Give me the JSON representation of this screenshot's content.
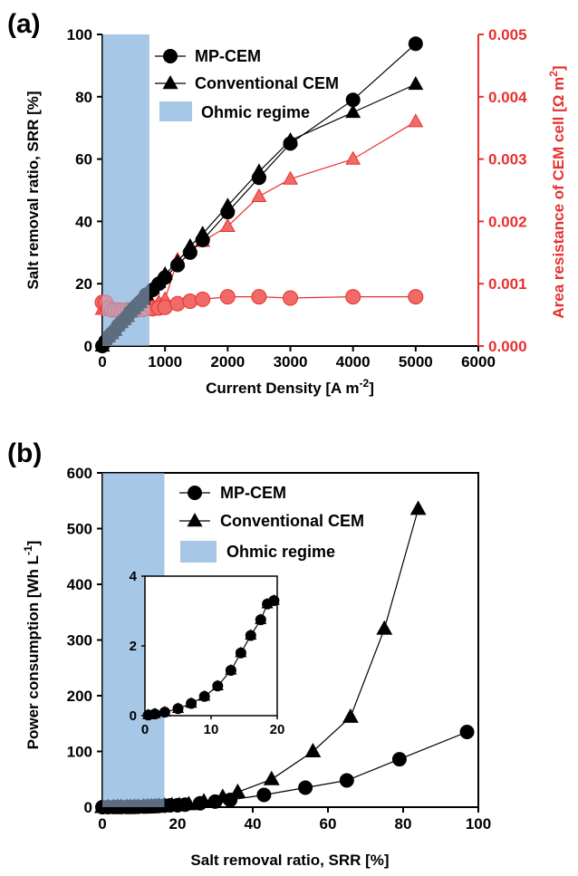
{
  "colors": {
    "black_series": "#000000",
    "red_series": "#e8302f",
    "red_fill": "#f06a68",
    "ohmic_fill": "#a7c7e7",
    "dark_overlap": "#233a4f"
  },
  "chart_data": [
    {
      "panel": "(a)",
      "type": "line",
      "xlabel": "Current Density [A m⁻²]",
      "ylabel": "Salt removal ratio, SRR  [%]",
      "y2label": "Area resistance of CEM cell [Ω m²]",
      "xlim": [
        0,
        6000
      ],
      "ylim": [
        0,
        100
      ],
      "y2lim": [
        0,
        0.005
      ],
      "x_ticks": [
        "0",
        "1000",
        "2000",
        "3000",
        "4000",
        "5000",
        "6000"
      ],
      "y_ticks": [
        "0",
        "20",
        "40",
        "60",
        "80",
        "100"
      ],
      "y2_ticks": [
        "0.000",
        "0.001",
        "0.002",
        "0.003",
        "0.004",
        "0.005"
      ],
      "ohmic_regime_x": [
        0,
        750
      ],
      "legend": {
        "position": "top-left",
        "items": [
          "MP-CEM",
          "Conventional CEM",
          "Ohmic regime"
        ]
      },
      "series": [
        {
          "name": "MP-CEM",
          "marker": "circle",
          "axis": "left",
          "x": [
            0,
            50,
            100,
            150,
            200,
            250,
            300,
            350,
            400,
            450,
            500,
            550,
            600,
            650,
            700,
            800,
            900,
            1000,
            1200,
            1400,
            1600,
            2000,
            2500,
            3000,
            4000,
            5000
          ],
          "y": [
            0,
            1.5,
            3,
            4,
            5,
            6.5,
            7.5,
            8.5,
            9.5,
            11,
            12,
            13,
            14,
            15,
            16.5,
            18,
            20,
            22,
            26,
            30,
            34,
            43,
            54,
            65,
            79,
            97
          ]
        },
        {
          "name": "Conventional CEM",
          "marker": "triangle",
          "axis": "left",
          "x": [
            0,
            50,
            100,
            150,
            200,
            250,
            300,
            350,
            400,
            450,
            500,
            550,
            600,
            650,
            700,
            800,
            900,
            1000,
            1200,
            1400,
            1600,
            2000,
            2500,
            3000,
            4000,
            5000
          ],
          "y": [
            0,
            1.5,
            3,
            4,
            5,
            6.5,
            7.5,
            8.5,
            9.5,
            11,
            12,
            13,
            14,
            15,
            16.5,
            18.5,
            20.5,
            23,
            27,
            32,
            36,
            45,
            56,
            66,
            75,
            84
          ]
        },
        {
          "name": "MP-CEM resistance",
          "marker": "circle",
          "axis": "right",
          "x": [
            0,
            50,
            100,
            150,
            200,
            250,
            300,
            350,
            400,
            450,
            500,
            550,
            600,
            650,
            700,
            800,
            900,
            1000,
            1200,
            1400,
            1600,
            2000,
            2500,
            3000,
            4000,
            5000
          ],
          "y": [
            0.0007,
            0.0007,
            0.00061,
            0.00058,
            0.00058,
            0.00058,
            0.00057,
            0.00057,
            0.00058,
            0.00058,
            0.00058,
            0.00058,
            0.00059,
            0.00059,
            0.0006,
            0.0006,
            0.00061,
            0.00062,
            0.00068,
            0.00072,
            0.00075,
            0.00079,
            0.00079,
            0.00077,
            0.00079,
            0.00079
          ]
        },
        {
          "name": "Conventional CEM resistance",
          "marker": "triangle",
          "axis": "right",
          "x": [
            0,
            50,
            100,
            150,
            200,
            250,
            300,
            350,
            400,
            450,
            500,
            550,
            600,
            650,
            700,
            800,
            900,
            1000,
            1200,
            1400,
            1600,
            2000,
            2500,
            3000,
            4000,
            5000
          ],
          "y": [
            0.00059,
            0.00059,
            0.00058,
            0.00057,
            0.00057,
            0.00057,
            0.00057,
            0.00057,
            0.00057,
            0.00058,
            0.00058,
            0.00058,
            0.00059,
            0.0006,
            0.00062,
            0.00066,
            0.0007,
            0.00075,
            0.00138,
            0.00155,
            0.00168,
            0.00192,
            0.0024,
            0.00268,
            0.003,
            0.0036
          ]
        }
      ]
    },
    {
      "panel": "(b)",
      "type": "line",
      "xlabel": "Salt removal ratio, SRR [%]",
      "ylabel": "Power consumption [Wh L⁻¹]",
      "xlim": [
        0,
        100
      ],
      "ylim": [
        0,
        600
      ],
      "x_ticks": [
        "0",
        "20",
        "40",
        "60",
        "80",
        "100"
      ],
      "y_ticks": [
        "0",
        "100",
        "200",
        "300",
        "400",
        "500",
        "600"
      ],
      "ohmic_regime_x": [
        0,
        16.5
      ],
      "legend": {
        "position": "top-right",
        "items": [
          "MP-CEM",
          "Conventional CEM",
          "Ohmic regime"
        ]
      },
      "series": [
        {
          "name": "MP-CEM",
          "marker": "circle",
          "x": [
            0,
            1.5,
            3,
            4,
            5,
            6.5,
            7.5,
            8.5,
            9.5,
            11,
            12,
            13,
            14,
            15,
            16.5,
            18,
            20,
            22,
            26,
            30,
            34,
            43,
            54,
            65,
            79,
            97
          ],
          "y": [
            0,
            0.05,
            0.1,
            0.15,
            0.2,
            0.3,
            0.4,
            0.5,
            0.65,
            0.9,
            1.1,
            1.4,
            1.7,
            2.1,
            2.6,
            3.2,
            3.4,
            4.5,
            7,
            10,
            13,
            22,
            35,
            48,
            86,
            135
          ]
        },
        {
          "name": "Conventional CEM",
          "marker": "triangle",
          "x": [
            0,
            1.5,
            3,
            4,
            5,
            6.5,
            7.5,
            8.5,
            9.5,
            11,
            12,
            13,
            14,
            15,
            16.5,
            18.5,
            20.5,
            23,
            27,
            32,
            36,
            45,
            56,
            66,
            75,
            84
          ],
          "y": [
            0,
            0.05,
            0.1,
            0.15,
            0.2,
            0.3,
            0.4,
            0.5,
            0.65,
            0.9,
            1.1,
            1.4,
            1.7,
            2.1,
            2.6,
            3.3,
            3.5,
            5,
            10,
            18,
            27,
            50,
            100,
            162,
            320,
            535
          ]
        }
      ],
      "inset": {
        "xlim": [
          0,
          20
        ],
        "ylim": [
          0,
          4
        ],
        "x_ticks": [
          "0",
          "10",
          "20"
        ],
        "y_ticks": [
          "0",
          "2",
          "4"
        ],
        "series": [
          {
            "name": "MP-CEM",
            "marker": "circle",
            "x": [
              0.5,
              1.5,
              3,
              5,
              7,
              9,
              11,
              13,
              14.5,
              16,
              17.5,
              18.5,
              19.5
            ],
            "y": [
              0.02,
              0.05,
              0.1,
              0.2,
              0.35,
              0.55,
              0.85,
              1.3,
              1.8,
              2.3,
              2.75,
              3.2,
              3.3
            ]
          },
          {
            "name": "Conventional CEM",
            "marker": "triangle",
            "x": [
              0.5,
              1.5,
              3,
              5,
              7,
              9,
              11,
              13,
              14.5,
              16,
              17.5,
              18.5,
              19.5
            ],
            "y": [
              0.02,
              0.05,
              0.1,
              0.2,
              0.35,
              0.55,
              0.85,
              1.3,
              1.8,
              2.3,
              2.75,
              3.2,
              3.3
            ]
          }
        ]
      }
    }
  ]
}
